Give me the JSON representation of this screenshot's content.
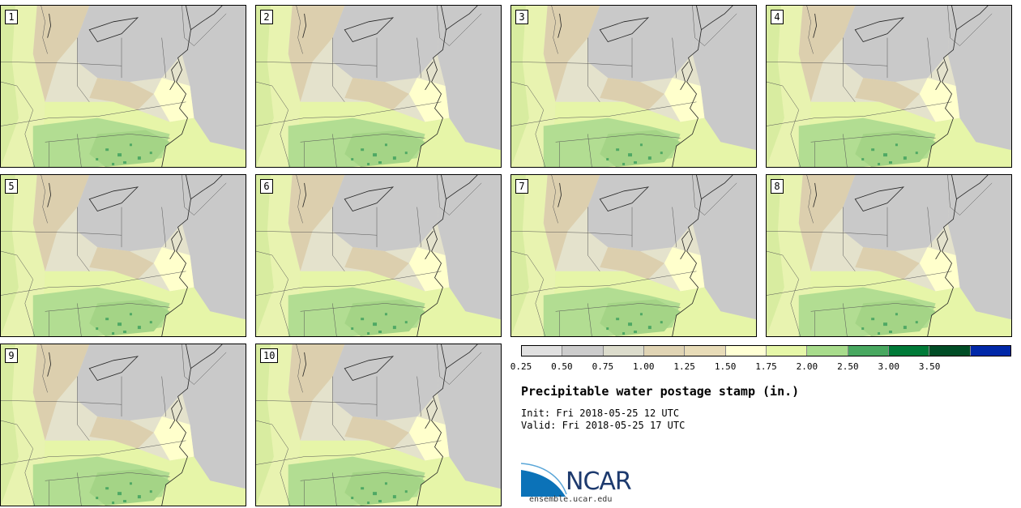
{
  "title": "Precipitable water postage stamp (in.)",
  "init_label": "Init:",
  "init_time": "Fri 2018-05-25 12 UTC",
  "valid_label": "Valid:",
  "valid_time": "Fri 2018-05-25 17 UTC",
  "logo_text": "NCAR",
  "url": "ensemble.ucar.edu",
  "stamps": [
    {
      "label": "1"
    },
    {
      "label": "2"
    },
    {
      "label": "3"
    },
    {
      "label": "4"
    },
    {
      "label": "5"
    },
    {
      "label": "6"
    },
    {
      "label": "7"
    },
    {
      "label": "8"
    },
    {
      "label": "9"
    },
    {
      "label": "10"
    }
  ],
  "colorbar": {
    "segment_colors": [
      "#e0e0e0",
      "#cccccc",
      "#dcdccc",
      "#e0d4b4",
      "#e8dcb8",
      "#ffffd4",
      "#e6f7a8",
      "#a8dc8c",
      "#48a860",
      "#007a38",
      "#004d26",
      "#0028a8"
    ],
    "tick_labels": [
      "0.25",
      "0.50",
      "0.75",
      "1.00",
      "1.25",
      "1.50",
      "1.75",
      "2.00",
      "2.50",
      "3.00",
      "3.50"
    ]
  }
}
